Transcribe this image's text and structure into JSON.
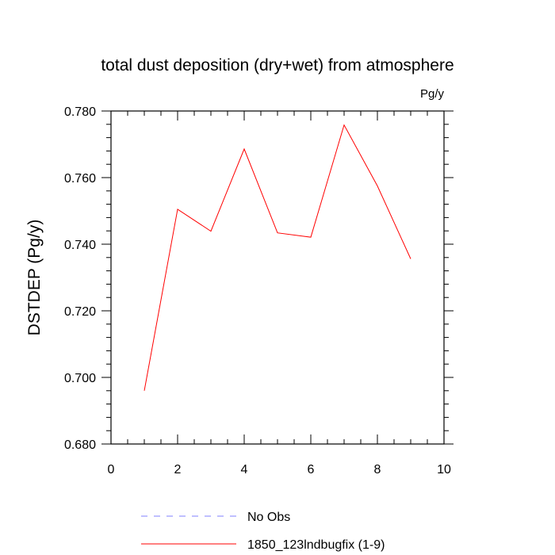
{
  "chart_data": {
    "type": "line",
    "title": "total dust deposition (dry+wet) from atmosphere",
    "units": "Pg/y",
    "ylabel": "DSTDEP  (Pg/y)",
    "xlabel": "",
    "xlim": [
      0,
      10
    ],
    "ylim": [
      0.68,
      0.78
    ],
    "xticks": [
      0,
      2,
      4,
      6,
      8,
      10
    ],
    "xtick_labels": [
      "0",
      "2",
      "4",
      "6",
      "8",
      "10"
    ],
    "yticks": [
      0.68,
      0.7,
      0.72,
      0.74,
      0.76,
      0.78
    ],
    "ytick_labels": [
      "0.680",
      "0.700",
      "0.720",
      "0.740",
      "0.760",
      "0.780"
    ],
    "grid": false,
    "legend_position": "bottom",
    "series": [
      {
        "name": "1850_123lndbugfix (1-9)",
        "color": "#ff0000",
        "style": "solid",
        "x": [
          1,
          2,
          3,
          4,
          5,
          6,
          7,
          8,
          9
        ],
        "y": [
          0.696,
          0.7505,
          0.7439,
          0.7686,
          0.7434,
          0.7421,
          0.7758,
          0.7575,
          0.7356
        ]
      }
    ],
    "legend": [
      {
        "label": "No Obs",
        "color": "#8080ff",
        "style": "dashed"
      },
      {
        "label": "1850_123lndbugfix (1-9)",
        "color": "#ff0000",
        "style": "solid"
      }
    ]
  }
}
